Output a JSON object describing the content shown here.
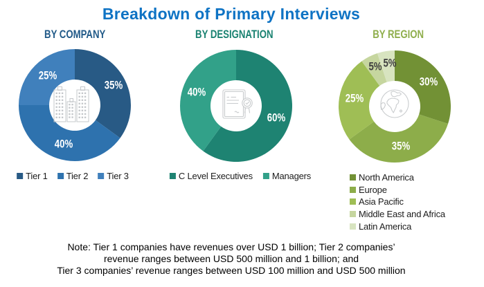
{
  "title": {
    "text": "Breakdown of Primary Interviews",
    "color": "#0E73C4"
  },
  "charts": [
    {
      "header": "BY COMPANY",
      "header_color": "#215A88",
      "icon": "buildings-icon",
      "legend_layout": "row",
      "chart_data": {
        "type": "donut",
        "segments": [
          {
            "label": "Tier 1",
            "value": 35,
            "color": "#285A85",
            "label_color": "#FFFFFF",
            "label_offset": [
              3,
              -1
            ]
          },
          {
            "label": "Tier 2",
            "value": 40,
            "color": "#2E72AE",
            "label_color": "#FFFFFF",
            "label_offset": [
              3,
              0
            ]
          },
          {
            "label": "Tier 3",
            "value": 25,
            "color": "#4080BC",
            "label_color": "#FFFFFF",
            "label_offset": [
              3,
              0
            ]
          }
        ]
      }
    },
    {
      "header": "BY DESIGNATION",
      "header_color": "#1A8271",
      "icon": "certificate-icon",
      "legend_layout": "row",
      "chart_data": {
        "type": "donut",
        "segments": [
          {
            "label": "C Level Executives",
            "value": 60,
            "color": "#1E8372",
            "label_color": "#FFFFFF",
            "label_offset": [
              1,
              0
            ]
          },
          {
            "label": "Managers",
            "value": 40,
            "color": "#32A189",
            "label_color": "#FFFFFF"
          }
        ]
      }
    },
    {
      "header": "BY REGION",
      "header_color": "#8FAE4C",
      "icon": "globe-icon",
      "legend_layout": "column",
      "chart_data": {
        "type": "donut",
        "segments": [
          {
            "label": "North America",
            "value": 30,
            "color": "#729135",
            "label_color": "#FFFFFF",
            "label_offset": [
              0,
              1
            ]
          },
          {
            "label": "Europe",
            "value": 35,
            "color": "#8DAD4A",
            "label_color": "#FFFFFF",
            "label_offset": [
              0,
              -1
            ]
          },
          {
            "label": "Asia Pacific",
            "value": 25,
            "color": "#9FBE55",
            "label_color": "#FFFFFF",
            "label_offset": [
              1,
              -1
            ]
          },
          {
            "label": "Middle East and Africa",
            "value": 5,
            "color": "#C6D69F",
            "label_color": "#3F3F3F",
            "label_r": 64.5,
            "label_offset": [
              1,
              1
            ]
          },
          {
            "label": "Latin America",
            "value": 5,
            "color": "#D8E4C0",
            "label_color": "#3F3F3F",
            "label_r": 62,
            "label_offset": [
              3,
              0
            ]
          }
        ]
      }
    }
  ],
  "note": {
    "lines": [
      "Note: Tier 1 companies have revenues over USD 1 billion; Tier 2 companies’",
      "revenue ranges between USD 500 million and 1 billion; and",
      "Tier 3 companies’ revenue ranges between USD 100 million and USD 500 million"
    ]
  }
}
